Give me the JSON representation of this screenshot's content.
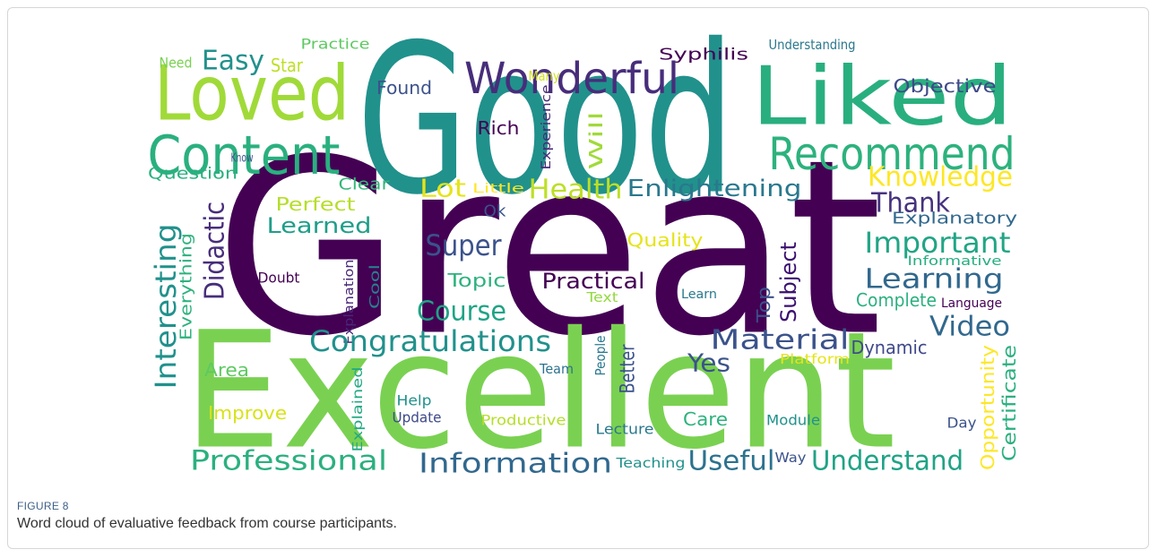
{
  "figure": {
    "words": [
      "Great",
      "Excellent",
      "Good",
      "Liked",
      "Loved",
      "Content",
      "Wonderful",
      "Recommend",
      "Easy",
      "Need",
      "Practice",
      "Star",
      "Found",
      "Many",
      "Experience",
      "Will",
      "Syphilis",
      "Understanding",
      "Objective",
      "Rich",
      "Know",
      "Question",
      "Clear",
      "Lot",
      "Little",
      "Health",
      "Enlightening",
      "Knowledge",
      "Thank",
      "Perfect",
      "Interesting",
      "Didactic",
      "Everything",
      "Learned",
      "Ok",
      "Explanatory",
      "Super",
      "Quality",
      "Important",
      "Informative",
      "Explanation",
      "Cool",
      "Doubt",
      "Topic",
      "Practical",
      "Subject",
      "Text",
      "Learn",
      "Learning",
      "Language",
      "Complete",
      "Top",
      "Course",
      "Video",
      "Congratulations",
      "Material",
      "Dynamic",
      "Opportunity",
      "Certificate",
      "Yes",
      "Platform",
      "Area",
      "Better",
      "People",
      "Team",
      "Explained",
      "Help",
      "Improve",
      "Update",
      "Productive",
      "Care",
      "Module",
      "Day",
      "Lecture",
      "Professional",
      "Information",
      "Teaching",
      "Useful",
      "Way",
      "Understand"
    ],
    "label": "FIGURE 8",
    "caption": "Word cloud of evaluative feedback from course participants."
  }
}
